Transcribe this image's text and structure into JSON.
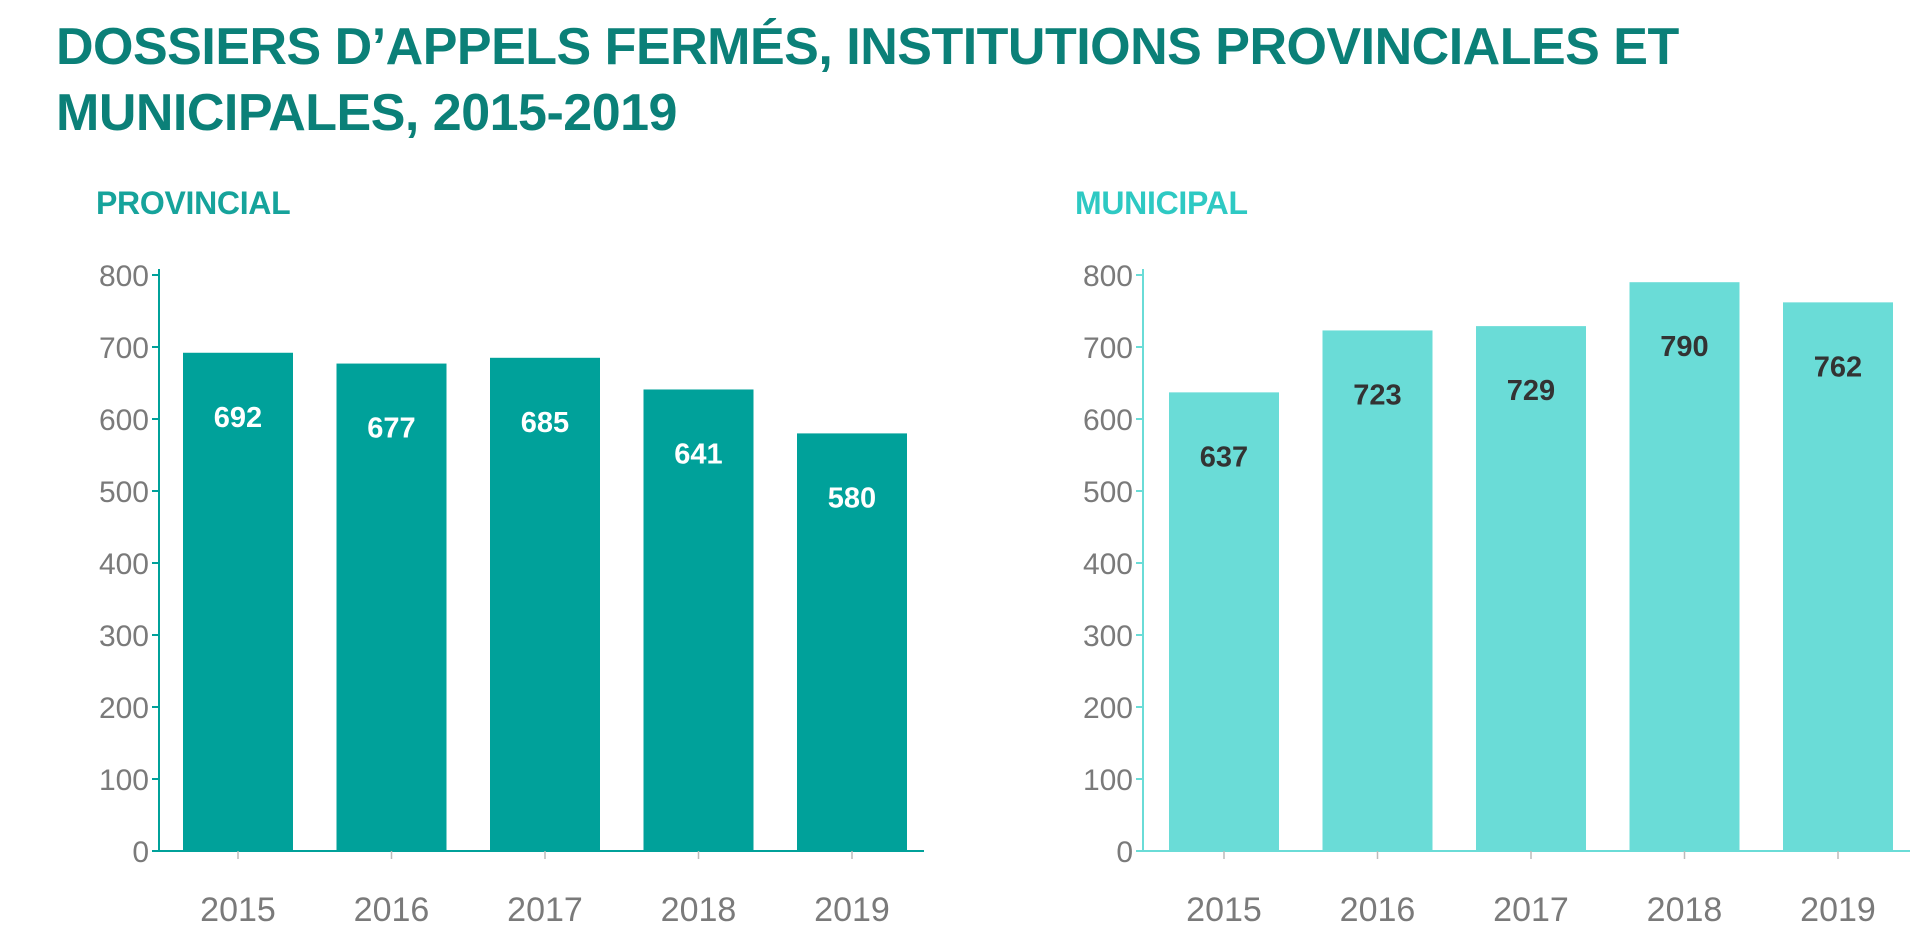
{
  "title": "DOSSIERS D’APPELS FERMÉS, INSTITUTIONS PROVINCIALES ET MUNICIPALES, 2015-2019",
  "colors": {
    "title": "#0b8078",
    "provincial_bar": "#00a19a",
    "municipal_bar": "#6adcd7",
    "municipal_title": "#2ec9c3",
    "provincial_label": "#ffffff",
    "municipal_label": "#333333"
  },
  "chart_data": [
    {
      "type": "bar",
      "title": "PROVINCIAL",
      "categories": [
        "2015",
        "2016",
        "2017",
        "2018",
        "2019"
      ],
      "values": [
        692,
        677,
        685,
        641,
        580
      ],
      "ylim": [
        0,
        800
      ],
      "yticks": [
        0,
        100,
        200,
        300,
        400,
        500,
        600,
        700,
        800
      ],
      "xlabel": "",
      "ylabel": "",
      "grid": false,
      "data_labels": true
    },
    {
      "type": "bar",
      "title": "MUNICIPAL",
      "categories": [
        "2015",
        "2016",
        "2017",
        "2018",
        "2019"
      ],
      "values": [
        637,
        723,
        729,
        790,
        762
      ],
      "ylim": [
        0,
        800
      ],
      "yticks": [
        0,
        100,
        200,
        300,
        400,
        500,
        600,
        700,
        800
      ],
      "xlabel": "",
      "ylabel": "",
      "grid": false,
      "data_labels": true
    }
  ]
}
